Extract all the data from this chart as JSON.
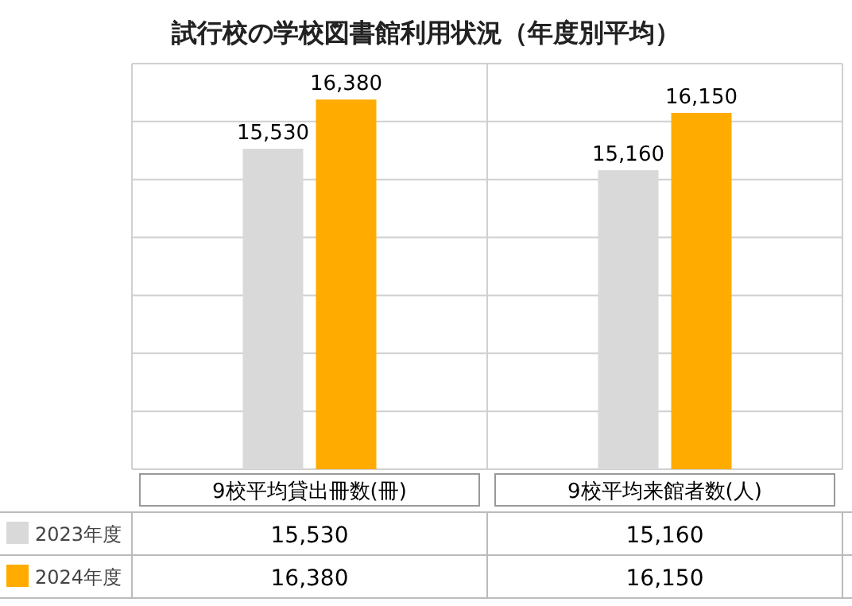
{
  "chart_data": {
    "type": "bar",
    "title": "試行校の学校図書館利用状況（年度別平均）",
    "categories": [
      "9校平均貸出冊数(冊)",
      "9校平均来館者数(人)"
    ],
    "series": [
      {
        "name": "2023年度",
        "color": "#d9d9d9",
        "values": [
          15530,
          15160
        ],
        "value_labels": [
          "15,530",
          "15,160"
        ]
      },
      {
        "name": "2024年度",
        "color": "#ffab00",
        "values": [
          16380,
          16150
        ],
        "value_labels": [
          "16,380",
          "16,150"
        ]
      }
    ],
    "ylim": [
      10000,
      17000
    ],
    "yticks": [
      {
        "value": 10000,
        "label": null
      },
      {
        "value": 11000,
        "label": null
      },
      {
        "value": 12000,
        "label": null
      },
      {
        "value": 13000,
        "label": null
      },
      {
        "value": 14000,
        "label": null
      },
      {
        "value": 15000,
        "label": null
      },
      {
        "value": 16000,
        "label": null
      },
      {
        "value": 17000,
        "label": null
      }
    ],
    "grid": "y",
    "legend": "bottom"
  }
}
